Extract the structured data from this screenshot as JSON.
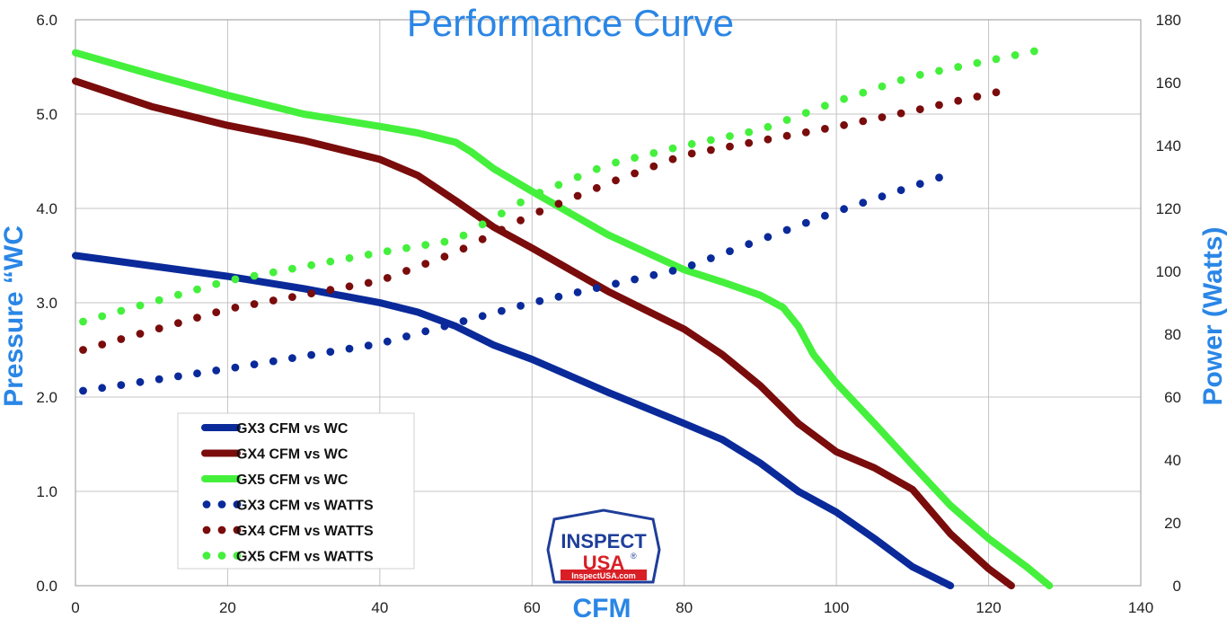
{
  "chart_data": {
    "type": "line",
    "title": "Performance Curve",
    "xlabel": "CFM",
    "ylabel": "Pressure “WC",
    "y2label": "Power (Watts)",
    "xlim": [
      0,
      140
    ],
    "ylim": [
      0,
      6
    ],
    "y2lim": [
      0,
      180
    ],
    "x_ticks": [
      "0",
      "20",
      "40",
      "60",
      "80",
      "100",
      "120",
      "140"
    ],
    "y_ticks": [
      "0.0",
      "1.0",
      "2.0",
      "3.0",
      "4.0",
      "5.0",
      "6.0"
    ],
    "y2_ticks": [
      "0",
      "20",
      "40",
      "60",
      "80",
      "100",
      "120",
      "140",
      "160",
      "180"
    ],
    "grid": true,
    "legend_position": "bottom-left",
    "series": [
      {
        "name": "GX3 CFM vs WC",
        "axis": "left",
        "style": "line",
        "color": "#0a2a9a",
        "x": [
          0,
          10,
          20,
          30,
          40,
          45,
          50,
          55,
          60,
          70,
          80,
          85,
          90,
          95,
          100,
          105,
          110,
          115
        ],
        "y": [
          3.5,
          3.39,
          3.28,
          3.15,
          3.0,
          2.9,
          2.75,
          2.55,
          2.4,
          2.05,
          1.72,
          1.55,
          1.3,
          1.0,
          0.78,
          0.5,
          0.2,
          0.0
        ]
      },
      {
        "name": "GX4 CFM vs WC",
        "axis": "left",
        "style": "line",
        "color": "#7a0c0c",
        "x": [
          0,
          10,
          20,
          30,
          40,
          45,
          50,
          55,
          60,
          70,
          80,
          85,
          90,
          95,
          100,
          105,
          110,
          115,
          120,
          123
        ],
        "y": [
          5.35,
          5.08,
          4.88,
          4.72,
          4.52,
          4.35,
          4.08,
          3.8,
          3.58,
          3.12,
          2.72,
          2.45,
          2.12,
          1.72,
          1.42,
          1.25,
          1.02,
          0.55,
          0.18,
          0.0
        ]
      },
      {
        "name": "GX5 CFM vs WC",
        "axis": "left",
        "style": "line",
        "color": "#44f03c",
        "x": [
          0,
          10,
          20,
          30,
          40,
          45,
          50,
          52,
          55,
          60,
          70,
          80,
          85,
          90,
          93,
          95,
          97,
          100,
          105,
          110,
          115,
          120,
          125,
          128
        ],
        "y": [
          5.65,
          5.42,
          5.2,
          5.0,
          4.87,
          4.8,
          4.7,
          4.6,
          4.42,
          4.18,
          3.72,
          3.35,
          3.22,
          3.08,
          2.95,
          2.75,
          2.45,
          2.15,
          1.72,
          1.28,
          0.85,
          0.5,
          0.2,
          0.0
        ]
      },
      {
        "name": "GX3 CFM vs WATTS",
        "axis": "right",
        "style": "dots",
        "color": "#0a2a9a",
        "x": [
          1,
          20,
          40,
          60,
          80,
          100,
          115
        ],
        "y": [
          62,
          69,
          77,
          90,
          101,
          119,
          131
        ]
      },
      {
        "name": "GX4 CFM vs WATTS",
        "axis": "right",
        "style": "dots",
        "color": "#7a0c0c",
        "x": [
          1,
          20,
          40,
          50,
          60,
          70,
          80,
          100,
          110,
          123
        ],
        "y": [
          75,
          88,
          97,
          106,
          118,
          128,
          137,
          146,
          151,
          158
        ]
      },
      {
        "name": "GX5 CFM vs WATTS",
        "axis": "right",
        "style": "dots",
        "color": "#44f03c",
        "x": [
          1,
          20,
          40,
          50,
          60,
          70,
          80,
          90,
          100,
          110,
          120,
          128
        ],
        "y": [
          84,
          97,
          106,
          110,
          124,
          134,
          140,
          145,
          154,
          162,
          167,
          171
        ]
      }
    ]
  },
  "logo": {
    "line1": "INSPECT",
    "line2": "USA",
    "line3": "InspectUSA.com",
    "reg": "®",
    "colors": {
      "blue": "#1f3e9a",
      "red": "#d81f26"
    }
  }
}
